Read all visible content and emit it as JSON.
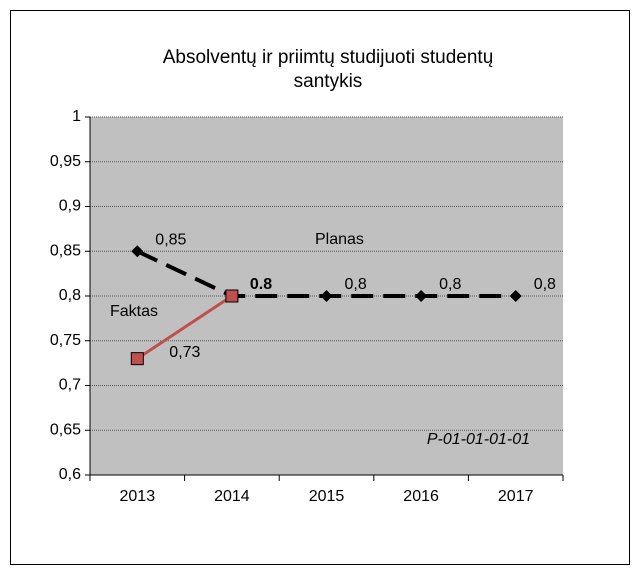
{
  "chart_data": {
    "type": "line",
    "title": "Absolventų ir priimtų studijuoti studentų santykis",
    "categories": [
      "2013",
      "2014",
      "2015",
      "2016",
      "2017"
    ],
    "series": [
      {
        "name": "Planas",
        "color": "#000000",
        "dashed": true,
        "marker": "diamond",
        "values": [
          0.85,
          0.8,
          0.8,
          0.8,
          0.8
        ],
        "value_labels": [
          "0,85",
          "0.8",
          "0,8",
          "0,8",
          "0,8"
        ]
      },
      {
        "name": "Faktas",
        "color": "#c0504d",
        "dashed": false,
        "marker": "square",
        "values": [
          0.73,
          0.8,
          null,
          null,
          null
        ],
        "value_labels": [
          "0,73",
          null,
          null,
          null,
          null
        ]
      }
    ],
    "ylim": [
      0.6,
      1
    ],
    "yticks": [
      {
        "value": 0.6,
        "label": "0,6"
      },
      {
        "value": 0.65,
        "label": "0,65"
      },
      {
        "value": 0.7,
        "label": "0,7"
      },
      {
        "value": 0.75,
        "label": "0,75"
      },
      {
        "value": 0.8,
        "label": "0,8"
      },
      {
        "value": 0.85,
        "label": "0,85"
      },
      {
        "value": 0.9,
        "label": "0,9"
      },
      {
        "value": 0.95,
        "label": "0,95"
      },
      1
    ],
    "grid": true,
    "annotation": "P-01-01-01-01"
  }
}
